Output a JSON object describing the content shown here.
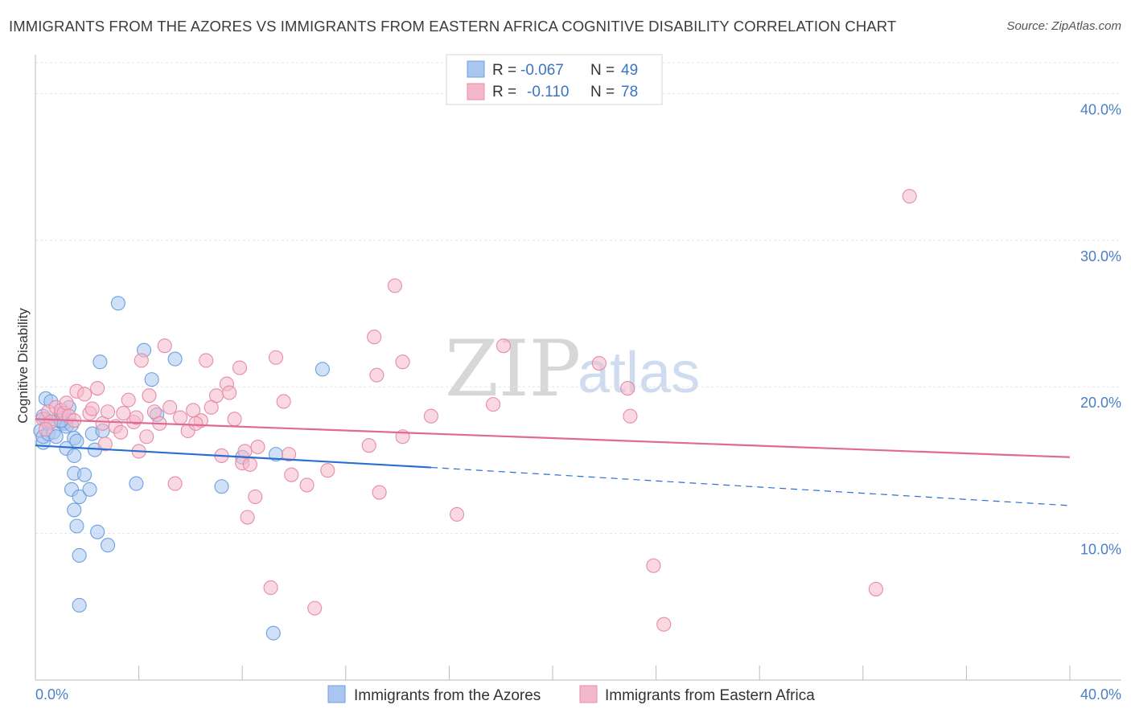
{
  "title": "IMMIGRANTS FROM THE AZORES VS IMMIGRANTS FROM EASTERN AFRICA COGNITIVE DISABILITY CORRELATION CHART",
  "source": "Source: ZipAtlas.com",
  "watermark": {
    "zip": "ZIP",
    "atlas": "atlas"
  },
  "legend": {
    "r_label": "R =",
    "n_label": "N =",
    "series": [
      {
        "r": "-0.067",
        "n": "49"
      },
      {
        "r": "-0.110",
        "n": "78"
      }
    ]
  },
  "colors": {
    "blue_fill": "#a9c6ee",
    "blue_stroke": "#6f9fe0",
    "blue_line": "#2a6fd0",
    "pink_fill": "#f5b8cb",
    "pink_stroke": "#e58ca8",
    "pink_line": "#e06a93",
    "tick_text": "#4a7fc8",
    "grid": "#e3e3e3"
  },
  "chart_data": {
    "type": "scatter",
    "title": "IMMIGRANTS FROM THE AZORES VS IMMIGRANTS FROM EASTERN AFRICA COGNITIVE DISABILITY CORRELATION CHART",
    "xlabel": "",
    "ylabel": "Cognitive Disability",
    "xlim": [
      0,
      40
    ],
    "ylim": [
      0,
      42
    ],
    "x_tick_labels": {
      "min": "0.0%",
      "max": "40.0%"
    },
    "y_ticks": [
      {
        "value": 10,
        "label": "10.0%"
      },
      {
        "value": 20,
        "label": "20.0%"
      },
      {
        "value": 30,
        "label": "30.0%"
      },
      {
        "value": 40,
        "label": "40.0%"
      }
    ],
    "series": [
      {
        "name": "Immigrants from the Azores",
        "color": "blue",
        "trend": {
          "x0": 0,
          "y0": 16.0,
          "x1": 15.3,
          "y1": 14.5,
          "dash_to_x": 40,
          "dash_to_y": 11.9
        },
        "points": [
          [
            0.2,
            17.0
          ],
          [
            0.3,
            16.2
          ],
          [
            0.3,
            16.6
          ],
          [
            0.4,
            17.8
          ],
          [
            0.4,
            19.2
          ],
          [
            0.5,
            17.5
          ],
          [
            0.5,
            16.8
          ],
          [
            0.6,
            19.0
          ],
          [
            0.7,
            16.9
          ],
          [
            0.8,
            16.6
          ],
          [
            0.9,
            17.9
          ],
          [
            1.0,
            17.6
          ],
          [
            1.0,
            18.2
          ],
          [
            1.1,
            17.5
          ],
          [
            1.2,
            17.3
          ],
          [
            1.2,
            15.8
          ],
          [
            1.3,
            18.6
          ],
          [
            1.4,
            17.4
          ],
          [
            1.5,
            16.5
          ],
          [
            1.6,
            16.3
          ],
          [
            1.4,
            13.0
          ],
          [
            1.5,
            11.6
          ],
          [
            1.6,
            10.5
          ],
          [
            1.5,
            15.3
          ],
          [
            1.5,
            14.1
          ],
          [
            1.7,
            12.5
          ],
          [
            1.7,
            8.5
          ],
          [
            1.7,
            5.1
          ],
          [
            1.9,
            14.0
          ],
          [
            2.1,
            13.0
          ],
          [
            2.2,
            16.8
          ],
          [
            2.3,
            15.7
          ],
          [
            2.4,
            10.1
          ],
          [
            2.5,
            21.7
          ],
          [
            2.6,
            17.0
          ],
          [
            2.8,
            9.2
          ],
          [
            3.2,
            25.7
          ],
          [
            3.9,
            13.4
          ],
          [
            4.2,
            22.5
          ],
          [
            4.5,
            20.5
          ],
          [
            4.7,
            18.1
          ],
          [
            5.4,
            21.9
          ],
          [
            7.2,
            13.2
          ],
          [
            8.0,
            15.2
          ],
          [
            9.2,
            3.2
          ],
          [
            9.3,
            15.4
          ],
          [
            11.1,
            21.2
          ],
          [
            0.3,
            18.0
          ],
          [
            1.0,
            17.7
          ]
        ]
      },
      {
        "name": "Immigrants from Eastern Africa",
        "color": "pink",
        "trend": {
          "x0": 0,
          "y0": 17.8,
          "x1": 40,
          "y1": 15.2
        },
        "points": [
          [
            0.3,
            17.8
          ],
          [
            0.5,
            18.3
          ],
          [
            0.6,
            17.6
          ],
          [
            0.8,
            18.6
          ],
          [
            1.0,
            18.4
          ],
          [
            1.1,
            18.2
          ],
          [
            1.2,
            18.9
          ],
          [
            1.3,
            18.0
          ],
          [
            1.5,
            17.7
          ],
          [
            1.6,
            19.7
          ],
          [
            1.9,
            19.5
          ],
          [
            2.1,
            18.2
          ],
          [
            2.2,
            18.5
          ],
          [
            2.4,
            19.9
          ],
          [
            2.6,
            17.5
          ],
          [
            2.7,
            16.1
          ],
          [
            2.8,
            18.3
          ],
          [
            3.1,
            17.3
          ],
          [
            3.3,
            16.9
          ],
          [
            3.4,
            18.2
          ],
          [
            3.6,
            19.1
          ],
          [
            3.8,
            17.6
          ],
          [
            4.0,
            15.6
          ],
          [
            4.1,
            21.8
          ],
          [
            4.3,
            16.6
          ],
          [
            4.4,
            19.4
          ],
          [
            4.6,
            18.3
          ],
          [
            4.8,
            17.5
          ],
          [
            5.0,
            22.8
          ],
          [
            5.2,
            18.6
          ],
          [
            5.4,
            13.4
          ],
          [
            5.6,
            17.9
          ],
          [
            5.9,
            17.0
          ],
          [
            6.1,
            18.4
          ],
          [
            6.4,
            17.7
          ],
          [
            6.6,
            21.8
          ],
          [
            6.8,
            18.6
          ],
          [
            7.0,
            19.4
          ],
          [
            7.2,
            15.3
          ],
          [
            7.4,
            20.2
          ],
          [
            7.5,
            19.6
          ],
          [
            7.7,
            17.8
          ],
          [
            7.9,
            21.3
          ],
          [
            8.0,
            14.8
          ],
          [
            8.1,
            15.6
          ],
          [
            8.2,
            11.1
          ],
          [
            8.3,
            14.7
          ],
          [
            8.5,
            12.5
          ],
          [
            8.6,
            15.9
          ],
          [
            9.1,
            6.3
          ],
          [
            9.3,
            22.0
          ],
          [
            9.6,
            19.0
          ],
          [
            9.8,
            15.4
          ],
          [
            10.5,
            13.3
          ],
          [
            10.8,
            4.9
          ],
          [
            11.3,
            14.3
          ],
          [
            12.9,
            16.0
          ],
          [
            13.2,
            20.8
          ],
          [
            13.1,
            23.4
          ],
          [
            13.3,
            12.8
          ],
          [
            13.9,
            26.9
          ],
          [
            14.2,
            16.6
          ],
          [
            14.2,
            21.7
          ],
          [
            15.3,
            18.0
          ],
          [
            16.3,
            11.3
          ],
          [
            17.7,
            18.8
          ],
          [
            18.1,
            22.8
          ],
          [
            21.8,
            21.6
          ],
          [
            22.9,
            19.9
          ],
          [
            23.0,
            18.0
          ],
          [
            23.9,
            7.8
          ],
          [
            24.3,
            3.8
          ],
          [
            32.5,
            6.2
          ],
          [
            33.8,
            33.0
          ],
          [
            9.9,
            14.0
          ],
          [
            0.4,
            17.1
          ],
          [
            6.2,
            17.5
          ],
          [
            3.9,
            17.9
          ]
        ]
      }
    ]
  },
  "bottom_legend": [
    {
      "label": "Immigrants from the Azores"
    },
    {
      "label": "Immigrants from Eastern Africa"
    }
  ]
}
